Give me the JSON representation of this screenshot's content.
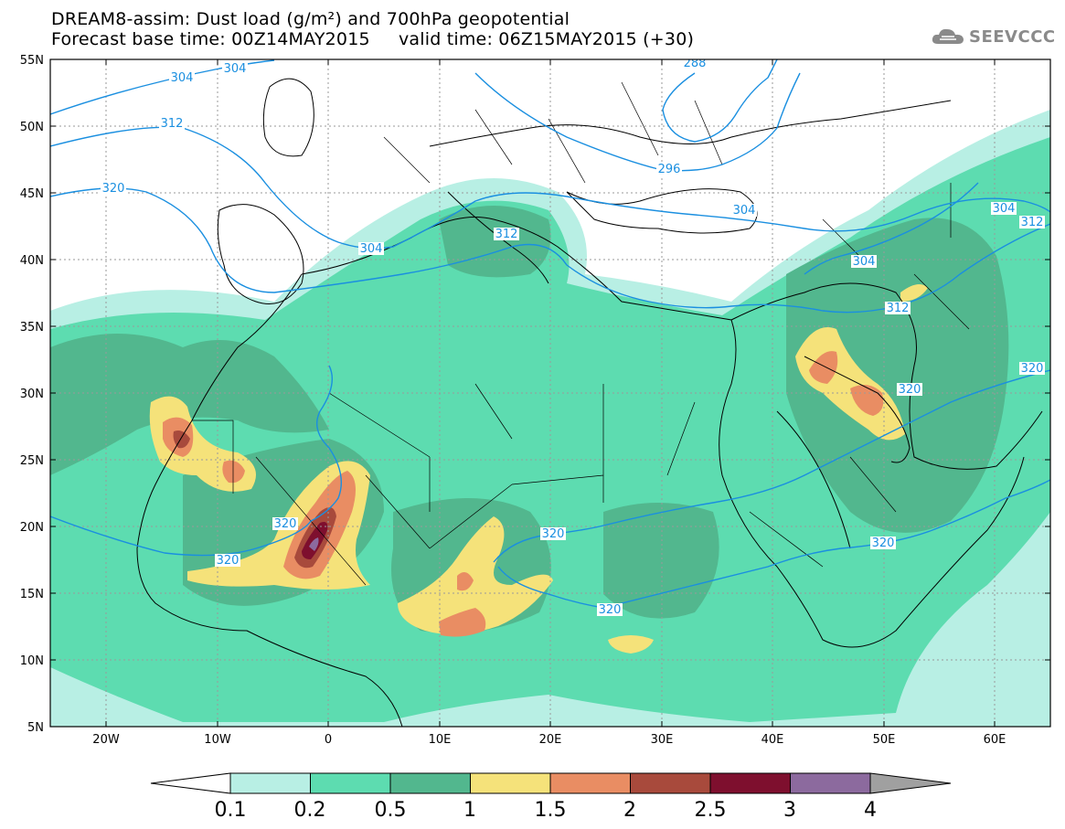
{
  "header": {
    "title_line1": "DREAM8-assim: Dust load (g/m²) and 700hPa geopotential",
    "title_line2": "Forecast base time: 00Z14MAY2015     valid time: 06Z15MAY2015 (+30)"
  },
  "logo": {
    "text": "SEEVCCC",
    "icon": "cloud-icon"
  },
  "map": {
    "lat_labels": [
      "55N",
      "50N",
      "45N",
      "40N",
      "35N",
      "30N",
      "25N",
      "20N",
      "15N",
      "10N",
      "5N"
    ],
    "lon_labels": [
      "20W",
      "10W",
      "0",
      "10E",
      "20E",
      "30E",
      "40E",
      "50E",
      "60E"
    ],
    "contour_labels": [
      "304",
      "304",
      "312",
      "320",
      "304",
      "312",
      "320",
      "320",
      "320",
      "320",
      "320",
      "312",
      "304",
      "304",
      "288",
      "296",
      "304",
      "312",
      "320",
      "320"
    ],
    "contour_color": "#1a8fe0"
  },
  "colorbar": {
    "labels": [
      "0.1",
      "0.2",
      "0.5",
      "1",
      "1.5",
      "2",
      "2.5",
      "3",
      "4"
    ],
    "colors": [
      "#b8efe4",
      "#5ddcb0",
      "#52b78e",
      "#f5e27a",
      "#e98d63",
      "#a84a3c",
      "#7e0f2e",
      "#8c6a9e",
      "#a0a0a0"
    ]
  }
}
